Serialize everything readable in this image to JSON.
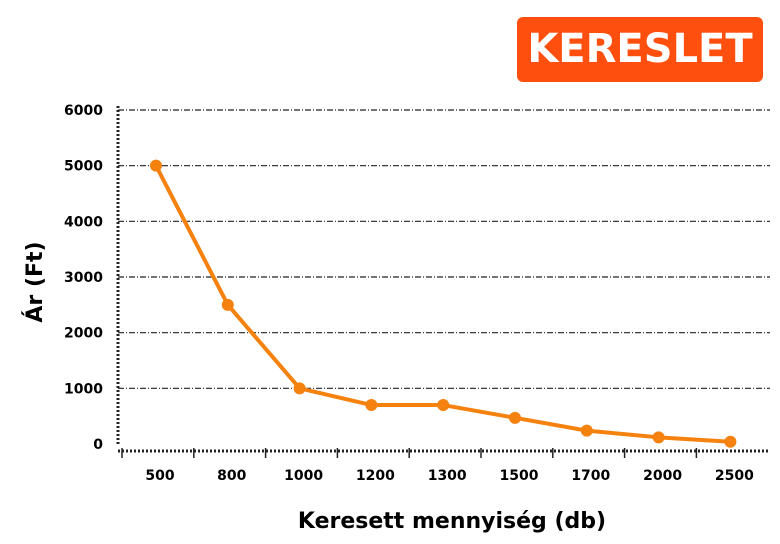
{
  "badge": {
    "label": "KERESLET",
    "color": "#ff4f0f"
  },
  "chart_data": {
    "type": "line",
    "title": "",
    "xlabel": "Keresett mennyiség (db)",
    "ylabel": "Ár (Ft)",
    "categories": [
      "500",
      "800",
      "1000",
      "1200",
      "1300",
      "1500",
      "1700",
      "2000",
      "2500"
    ],
    "series": [
      {
        "values": [
          5000,
          2500,
          1000,
          700,
          700,
          470,
          240,
          120,
          40
        ],
        "color": "#f5820f"
      }
    ],
    "ylim": [
      0,
      6000
    ],
    "yticks": [
      0,
      1000,
      2000,
      3000,
      4000,
      5000,
      6000
    ],
    "grid": true,
    "grid_style": "dash-dot",
    "legend": "none"
  }
}
